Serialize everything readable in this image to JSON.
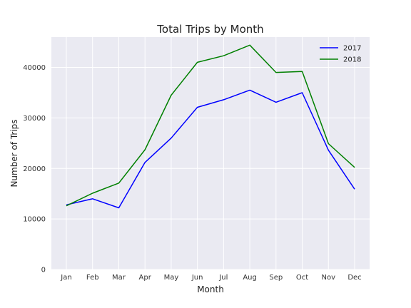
{
  "chart_data": {
    "type": "line",
    "title": "Total Trips by Month",
    "xlabel": "Month",
    "ylabel": "Number of Trips",
    "categories": [
      "Jan",
      "Feb",
      "Mar",
      "Apr",
      "May",
      "Jun",
      "Jul",
      "Aug",
      "Sep",
      "Oct",
      "Nov",
      "Dec"
    ],
    "ylim": [
      0,
      46000
    ],
    "yticks": [
      0,
      10000,
      20000,
      30000,
      40000
    ],
    "grid": true,
    "legend_placement": "top-right",
    "series": [
      {
        "name": "2017",
        "color": "#0000ff",
        "values": [
          12800,
          14000,
          12200,
          21200,
          26000,
          32100,
          33600,
          35500,
          33100,
          35000,
          23600,
          15900
        ]
      },
      {
        "name": "2018",
        "color": "#008000",
        "values": [
          12600,
          15100,
          17100,
          23700,
          34500,
          41000,
          42300,
          44400,
          39000,
          39200,
          24900,
          20200
        ]
      }
    ]
  }
}
